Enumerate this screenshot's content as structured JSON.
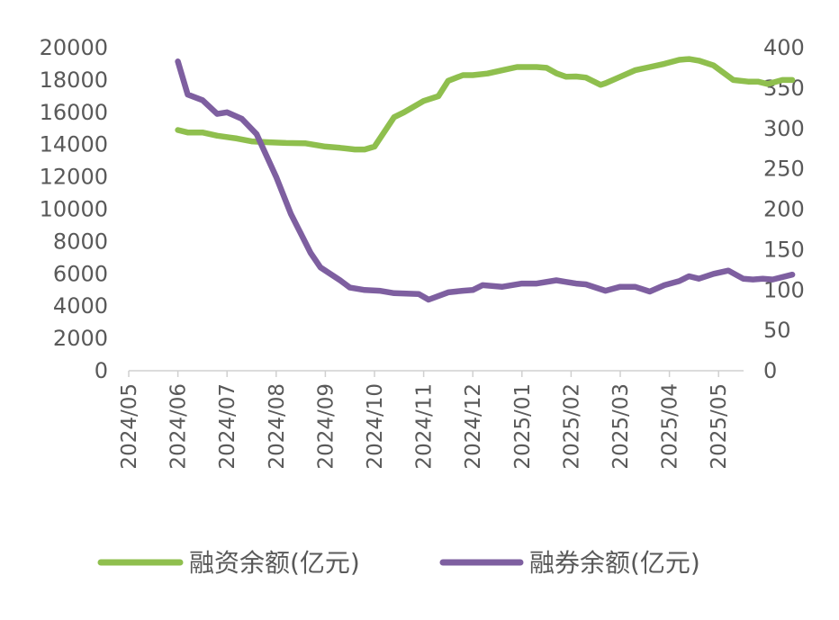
{
  "chart_data": {
    "type": "line",
    "title": "",
    "x_labels": [
      "2024/05",
      "2024/06",
      "2024/07",
      "2024/08",
      "2024/09",
      "2024/10",
      "2024/11",
      "2024/12",
      "2025/01",
      "2025/02",
      "2025/03",
      "2025/04",
      "2025/05"
    ],
    "y_left": {
      "min": 0,
      "max": 20000,
      "step": 2000,
      "ticks": [
        "0",
        "2000",
        "4000",
        "6000",
        "8000",
        "10000",
        "12000",
        "14000",
        "16000",
        "18000",
        "20000"
      ]
    },
    "y_right": {
      "min": 0,
      "max": 400,
      "step": 50,
      "ticks": [
        "0",
        "50",
        "100",
        "150",
        "200",
        "250",
        "300",
        "350",
        "400"
      ]
    },
    "series": [
      {
        "name": "融资余额(亿元)",
        "axis": "left",
        "color": "#8fbf4e",
        "x": [
          1.0,
          1.2,
          1.5,
          1.8,
          2.2,
          2.5,
          2.8,
          3.2,
          3.6,
          4.0,
          4.3,
          4.6,
          4.8,
          5.0,
          5.4,
          5.6,
          6.0,
          6.3,
          6.5,
          6.8,
          7.0,
          7.3,
          7.6,
          7.9,
          8.3,
          8.5,
          8.7,
          8.9,
          9.1,
          9.3,
          9.6,
          9.7,
          10.0,
          10.3,
          10.6,
          10.9,
          11.2,
          11.4,
          11.6,
          11.9,
          12.3,
          12.6,
          12.8,
          13.0,
          13.3,
          13.5
        ],
        "values": [
          14900,
          14750,
          14750,
          14550,
          14380,
          14200,
          14150,
          14100,
          14080,
          13880,
          13800,
          13700,
          13700,
          13880,
          15700,
          16000,
          16700,
          17000,
          17950,
          18300,
          18300,
          18400,
          18600,
          18800,
          18800,
          18750,
          18420,
          18200,
          18220,
          18150,
          17700,
          17800,
          18200,
          18600,
          18800,
          19000,
          19250,
          19300,
          19200,
          18900,
          18000,
          17900,
          17900,
          17750,
          18000,
          18000
        ]
      },
      {
        "name": "融券余额(亿元)",
        "axis": "right",
        "color": "#7e5fa0",
        "x": [
          1.0,
          1.2,
          1.5,
          1.8,
          2.0,
          2.3,
          2.6,
          3.0,
          3.3,
          3.5,
          3.7,
          3.9,
          4.3,
          4.5,
          4.8,
          5.1,
          5.4,
          5.9,
          6.1,
          6.5,
          6.8,
          7.0,
          7.2,
          7.6,
          8.0,
          8.3,
          8.7,
          8.9,
          9.1,
          9.3,
          9.7,
          10.0,
          10.3,
          10.6,
          10.9,
          11.2,
          11.4,
          11.6,
          11.9,
          12.2,
          12.5,
          12.7,
          12.9,
          13.1,
          13.5
        ],
        "values": [
          383,
          342,
          335,
          318,
          320,
          312,
          293,
          240,
          194,
          170,
          146,
          128,
          112,
          103,
          100,
          99,
          96,
          95,
          88,
          97,
          99,
          100,
          106,
          104,
          108,
          108,
          112,
          110,
          108,
          107,
          99,
          104,
          104,
          98,
          106,
          111,
          117,
          114,
          120,
          124,
          114,
          113,
          114,
          113,
          119
        ]
      }
    ],
    "legend": {
      "position": "bottom",
      "items": [
        "融资余额(亿元)",
        "融券余额(亿元)"
      ]
    }
  }
}
